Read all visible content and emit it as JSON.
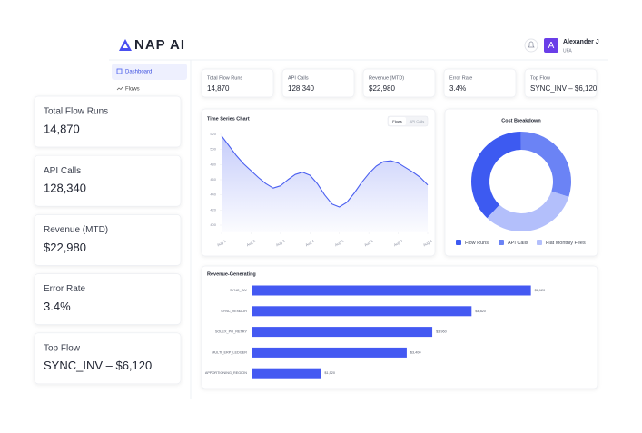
{
  "header": {
    "logo": "NAP AI",
    "user_initial": "A",
    "user_name": "Alexander J",
    "user_role": "UFA"
  },
  "sidebar": {
    "items": [
      "Dashboard",
      "Flows"
    ]
  },
  "overlay_cards": [
    {
      "label": "Total Flow Runs",
      "value": "14,870"
    },
    {
      "label": "API Calls",
      "value": "128,340"
    },
    {
      "label": "Revenue (MTD)",
      "value": "$22,980"
    },
    {
      "label": "Error Rate",
      "value": "3.4%"
    },
    {
      "label": "Top Flow",
      "value": "SYNC_INV – $6,120"
    }
  ],
  "kpis": [
    {
      "label": "Total Flow Runs",
      "value": "14,870"
    },
    {
      "label": "API Calls",
      "value": "128,340"
    },
    {
      "label": "Revenue (MTD)",
      "value": "$22,980"
    },
    {
      "label": "Error Rate",
      "value": "3.4%"
    },
    {
      "label": "Top Flow",
      "value": "SYNC_INV – $6,120"
    }
  ],
  "time_series": {
    "type": "line",
    "title": "Time Series Chart",
    "toggle": [
      "Flows",
      "API Calls"
    ],
    "x": [
      0,
      1,
      2,
      3,
      4,
      5,
      6,
      7,
      8,
      9,
      10,
      11,
      12,
      13,
      14,
      15,
      16,
      17,
      18,
      19,
      20,
      21,
      22,
      23,
      24,
      25,
      26,
      27,
      28
    ],
    "values": [
      518,
      505,
      492,
      481,
      472,
      463,
      455,
      449,
      452,
      460,
      467,
      470,
      466,
      455,
      440,
      428,
      424,
      430,
      442,
      456,
      468,
      478,
      484,
      485,
      482,
      476,
      470,
      463,
      453
    ],
    "color": "#4a5ff0",
    "xlim": [
      0,
      28
    ],
    "xticks": [
      {
        "value": 0,
        "label": "Aug 1"
      },
      {
        "value": 4,
        "label": "Aug 2"
      },
      {
        "value": 8,
        "label": "Aug 3"
      },
      {
        "value": 12,
        "label": "Aug 4"
      },
      {
        "value": 16,
        "label": "Aug 5"
      },
      {
        "value": 20,
        "label": "Aug 6"
      },
      {
        "value": 24,
        "label": "Aug 7"
      },
      {
        "value": 28,
        "label": "Aug 8"
      }
    ],
    "ylim": [
      400,
      520
    ],
    "yticks": [
      520,
      500,
      480,
      460,
      440,
      420,
      400
    ]
  },
  "cost_breakdown": {
    "type": "pie",
    "title": "Cost Breakdown",
    "categories": [
      "Flow Runs",
      "API Calls",
      "Flat Monthly Fees"
    ],
    "values": [
      38,
      30,
      32
    ],
    "colors": [
      "#3d5af1",
      "#6b83f5",
      "#b3bffb"
    ]
  },
  "revenue": {
    "type": "bar",
    "title": "Revenue-Generating",
    "categories": [
      "SYNC_INV",
      "SYNC_VENDOR",
      "SOLEX_PO_RETRY",
      "MULTI_ERP_LEDGER",
      "APPORTIONING_REGION"
    ],
    "values": [
      6120,
      4820,
      3960,
      3400,
      1520
    ],
    "value_labels": [
      "$6,120",
      "$4,820",
      "$3,960",
      "$3,400",
      "$1,520"
    ],
    "color": "#4459f2",
    "xlim": [
      0,
      7400
    ]
  }
}
